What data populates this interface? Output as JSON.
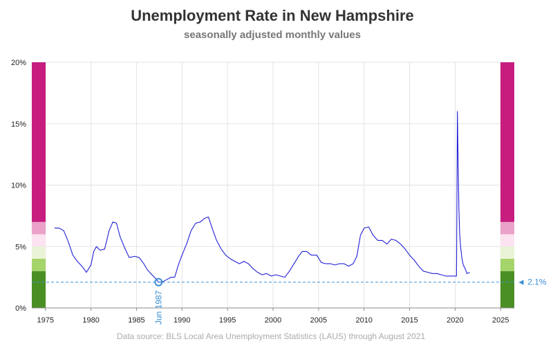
{
  "chart_data": {
    "type": "line",
    "title": "Unemployment Rate in New Hampshire",
    "subtitle": "seasonally adjusted monthly values",
    "source": "Data source: BLS Local Area Unemployment Statistics (LAUS) through August 2021",
    "xlim": [
      1973.5,
      2026.5
    ],
    "ylim": [
      0,
      20
    ],
    "x_ticks": [
      1975,
      1980,
      1985,
      1990,
      1995,
      2000,
      2005,
      2010,
      2015,
      2020,
      2025
    ],
    "y_ticks": [
      {
        "value": 0,
        "label": "0%"
      },
      {
        "value": 5,
        "label": "5%"
      },
      {
        "value": 10,
        "label": "10%"
      },
      {
        "value": 15,
        "label": "15%"
      },
      {
        "value": 20,
        "label": "20%"
      }
    ],
    "grid": true,
    "line_color": "#1f1fd6",
    "reference_line": {
      "value": 2.1,
      "label": "◄ 2.1%",
      "color": "#3a8fd6"
    },
    "min_annotation": {
      "x": 1987.42,
      "y": 2.1,
      "label": "Jun 1987"
    },
    "color_bands": [
      {
        "from": 0,
        "to": 3,
        "color": "#4a8f23"
      },
      {
        "from": 3,
        "to": 4,
        "color": "#a5d46a"
      },
      {
        "from": 4,
        "to": 5,
        "color": "#eaf3d6"
      },
      {
        "from": 5,
        "to": 6,
        "color": "#fbe3f0"
      },
      {
        "from": 6,
        "to": 7,
        "color": "#eaa2c8"
      },
      {
        "from": 7,
        "to": 20,
        "color": "#c71d7f"
      }
    ],
    "series": [
      {
        "x": [
          1976.0,
          1976.5,
          1977.0,
          1977.5,
          1978.0,
          1978.5,
          1979.0,
          1979.5,
          1980.0,
          1980.3,
          1980.6,
          1981.0,
          1981.5,
          1982.0,
          1982.4,
          1982.8,
          1983.2,
          1983.7,
          1984.2,
          1984.8,
          1985.3,
          1985.8,
          1986.2,
          1986.7,
          1987.1,
          1987.42,
          1987.8,
          1988.3,
          1988.8,
          1989.2,
          1989.6,
          1990.0,
          1990.5,
          1991.0,
          1991.5,
          1992.0,
          1992.5,
          1992.9,
          1993.4,
          1993.8,
          1994.3,
          1994.8,
          1995.3,
          1995.8,
          1996.3,
          1996.8,
          1997.3,
          1997.8,
          1998.3,
          1998.8,
          1999.3,
          1999.8,
          2000.3,
          2000.8,
          2001.3,
          2001.8,
          2002.3,
          2002.8,
          2003.2,
          2003.7,
          2004.2,
          2004.8,
          2005.3,
          2005.8,
          2006.3,
          2006.8,
          2007.3,
          2007.8,
          2008.3,
          2008.8,
          2009.2,
          2009.6,
          2010.0,
          2010.5,
          2011.0,
          2011.5,
          2012.0,
          2012.5,
          2013.0,
          2013.5,
          2014.0,
          2014.5,
          2015.0,
          2015.5,
          2016.0,
          2016.5,
          2017.0,
          2017.5,
          2018.0,
          2018.5,
          2019.0,
          2019.5,
          2020.0,
          2020.15,
          2020.25,
          2020.33,
          2020.42,
          2020.5,
          2020.6,
          2020.75,
          2020.9,
          2021.1,
          2021.3,
          2021.6
        ],
        "y": [
          6.5,
          6.5,
          6.3,
          5.4,
          4.3,
          3.8,
          3.4,
          2.9,
          3.5,
          4.6,
          5.0,
          4.7,
          4.8,
          6.3,
          7.0,
          6.9,
          5.8,
          4.9,
          4.1,
          4.2,
          4.1,
          3.6,
          3.1,
          2.7,
          2.4,
          2.1,
          2.1,
          2.3,
          2.5,
          2.5,
          3.5,
          4.3,
          5.2,
          6.3,
          6.9,
          7.0,
          7.3,
          7.4,
          6.3,
          5.5,
          4.8,
          4.3,
          4.0,
          3.8,
          3.6,
          3.8,
          3.6,
          3.2,
          2.9,
          2.7,
          2.8,
          2.6,
          2.7,
          2.6,
          2.5,
          3.0,
          3.6,
          4.2,
          4.6,
          4.6,
          4.3,
          4.3,
          3.7,
          3.6,
          3.6,
          3.5,
          3.6,
          3.6,
          3.4,
          3.6,
          4.2,
          5.9,
          6.5,
          6.6,
          5.9,
          5.5,
          5.5,
          5.2,
          5.6,
          5.5,
          5.2,
          4.8,
          4.3,
          3.9,
          3.4,
          3.0,
          2.9,
          2.8,
          2.8,
          2.7,
          2.6,
          2.6,
          2.6,
          2.6,
          16.0,
          12.0,
          8.0,
          6.0,
          5.0,
          4.0,
          3.5,
          3.2,
          2.8,
          2.9
        ]
      }
    ]
  }
}
